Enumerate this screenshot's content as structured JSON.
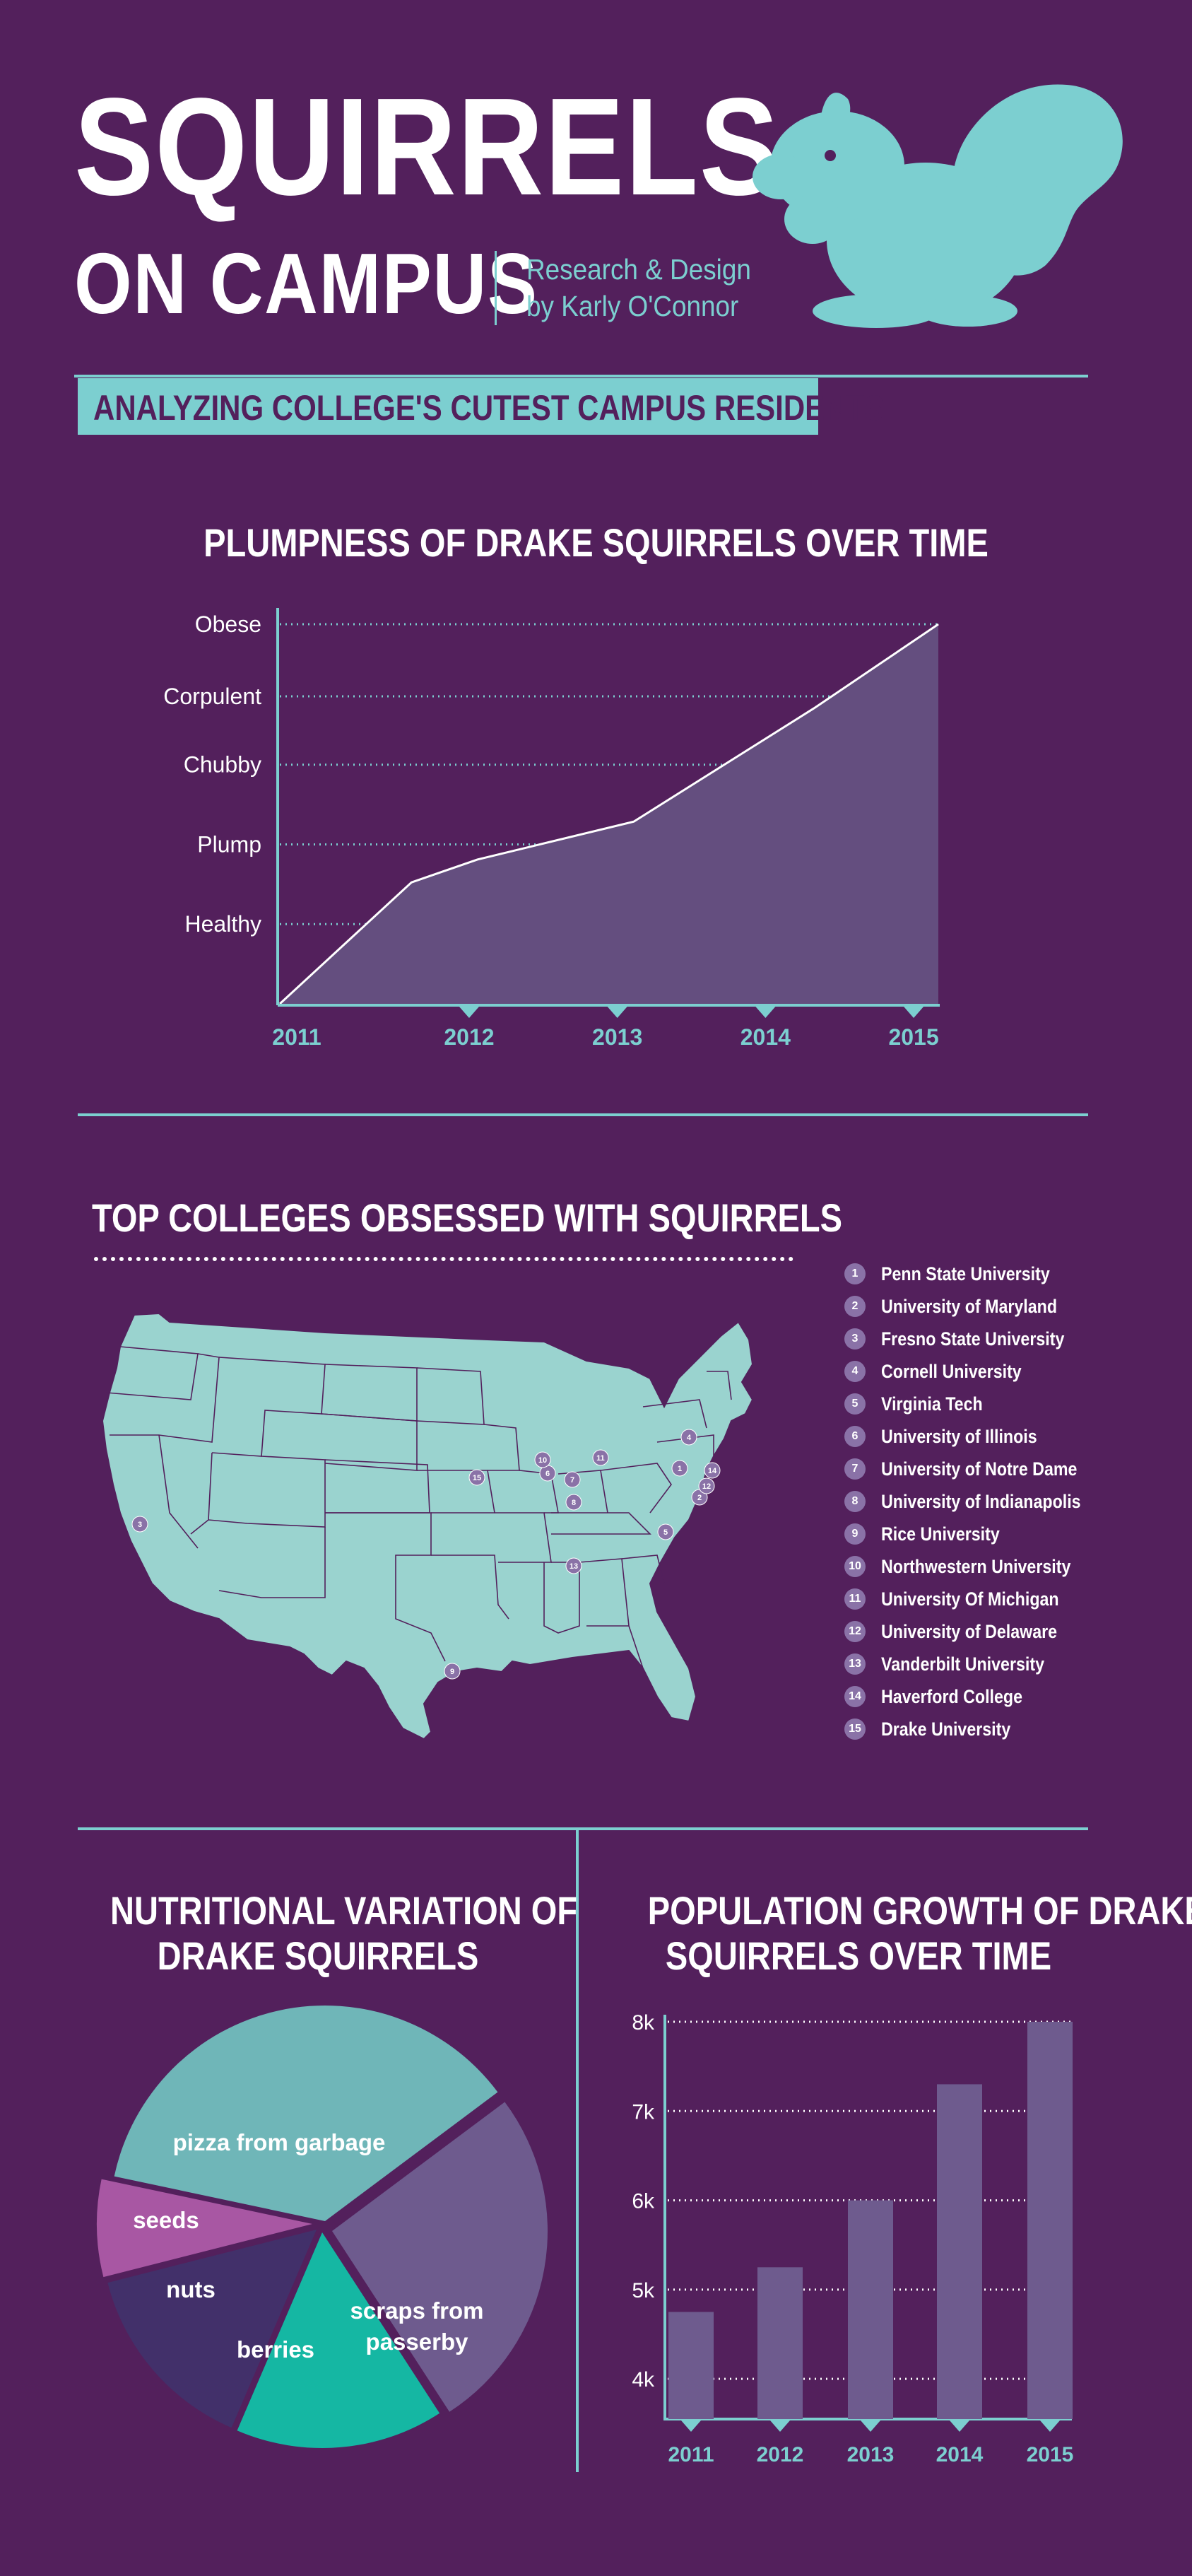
{
  "header": {
    "title_line1": "SQUIRRELS",
    "title_line2": "ON CAMPUS",
    "credit_line1": "Research & Design",
    "credit_line2": "by Karly O'Connor",
    "subtitle": "ANALYZING COLLEGE'S CUTEST CAMPUS RESIDENTS"
  },
  "colors": {
    "background": "#53205c",
    "accent": "#7ccfd0",
    "area_fill": "#644e7f",
    "bar_fill": "#6e5b8e",
    "map_fill": "#9ad3cf",
    "marker": "#8a72a7"
  },
  "icons": {
    "logo": "squirrel-silhouette"
  },
  "plumpness": {
    "title": "PLUMPNESS OF DRAKE SQUIRRELS OVER TIME"
  },
  "colleges": {
    "title": "TOP COLLEGES OBSESSED WITH SQUIRRELS",
    "items": [
      {
        "num": "1",
        "label": "Penn State University"
      },
      {
        "num": "2",
        "label": "University of Maryland"
      },
      {
        "num": "3",
        "label": "Fresno State University"
      },
      {
        "num": "4",
        "label": "Cornell University"
      },
      {
        "num": "5",
        "label": "Virginia Tech"
      },
      {
        "num": "6",
        "label": "University of Illinois"
      },
      {
        "num": "7",
        "label": "University of Notre Dame"
      },
      {
        "num": "8",
        "label": "University of Indianapolis"
      },
      {
        "num": "9",
        "label": "Rice University"
      },
      {
        "num": "10",
        "label": "Northwestern University"
      },
      {
        "num": "11",
        "label": "University Of Michigan"
      },
      {
        "num": "12",
        "label": "University of Delaware"
      },
      {
        "num": "13",
        "label": "Vanderbilt University"
      },
      {
        "num": "14",
        "label": "Haverford College"
      },
      {
        "num": "15",
        "label": "Drake University"
      }
    ]
  },
  "nutrition": {
    "title_line1": "NUTRITIONAL VARIATION OF",
    "title_line2": "DRAKE SQUIRRELS"
  },
  "population": {
    "title_line1": "POPULATION GROWTH OF DRAKE",
    "title_line2": "SQUIRRELS OVER TIME"
  },
  "chart_data": [
    {
      "type": "area",
      "title": "PLUMPNESS OF DRAKE SQUIRRELS OVER TIME",
      "x": [
        "2011",
        "2012",
        "2013",
        "2014",
        "2015"
      ],
      "y_categories": [
        "Healthy",
        "Plump",
        "Chubby",
        "Corpulent",
        "Obese"
      ],
      "points": [
        {
          "x": 2011.0,
          "y": 0.0
        },
        {
          "x": 2011.8,
          "y": 1.6
        },
        {
          "x": 2012.2,
          "y": 1.9
        },
        {
          "x": 2013.15,
          "y": 2.4
        },
        {
          "x": 2014.25,
          "y": 3.9
        },
        {
          "x": 2015.0,
          "y": 5.0
        }
      ],
      "ylim": [
        0,
        5
      ],
      "grid": true
    },
    {
      "type": "pie",
      "title": "NUTRITIONAL VARIATION OF DRAKE SQUIRRELS",
      "slices": [
        {
          "label": "pizza from garbage",
          "value": 35,
          "color": "#6fb6b8"
        },
        {
          "label": "scraps from passerby",
          "value": 25,
          "color": "#6e5b8e"
        },
        {
          "label": "berries",
          "value": 15,
          "color": "#15b7a3"
        },
        {
          "label": "nuts",
          "value": 14,
          "color": "#42306a"
        },
        {
          "label": "seeds",
          "value": 7,
          "color": "#a857a3"
        }
      ]
    },
    {
      "type": "bar",
      "title": "POPULATION GROWTH OF DRAKE SQUIRRELS OVER TIME",
      "categories": [
        "2011",
        "2012",
        "2013",
        "2014",
        "2015"
      ],
      "values": [
        4750,
        5250,
        6000,
        7300,
        8000
      ],
      "y_ticks": [
        "4k",
        "5k",
        "6k",
        "7k",
        "8k"
      ],
      "ylim": [
        3550,
        8000
      ],
      "grid": true
    }
  ]
}
